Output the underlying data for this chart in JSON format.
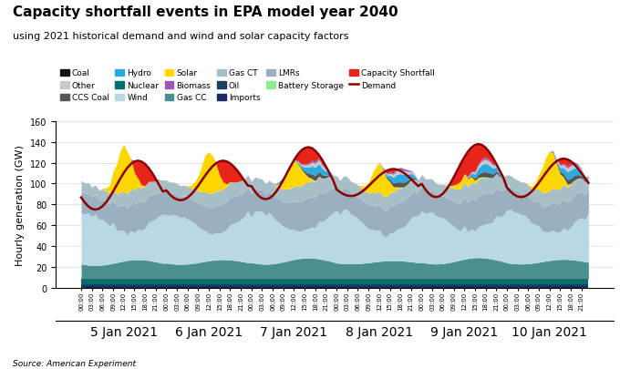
{
  "title": "Capacity shortfall events in EPA model year 2040",
  "subtitle": "using 2021 historical demand and wind and solar capacity factors",
  "ylabel": "Hourly generation (GW)",
  "source": "Source: American Experiment",
  "ylim": [
    0,
    160
  ],
  "yticks": [
    0,
    20,
    40,
    60,
    80,
    100,
    120,
    140,
    160
  ],
  "n_hours": 144,
  "days": [
    "5 Jan 2021",
    "6 Jan 2021",
    "7 Jan 2021",
    "8 Jan 2021",
    "9 Jan 2021",
    "10 Jan 2021"
  ],
  "colors": {
    "Coal": "#111111",
    "Other": "#c8c8c8",
    "CCS Coal": "#555555",
    "Hydro": "#29abe2",
    "Nuclear": "#007070",
    "Wind": "#b8d8e8",
    "Solar": "#ffd700",
    "Biomass": "#9b59b6",
    "Gas CC": "#4a9090",
    "Gas CT": "#a8bfc8",
    "Oil": "#1a4060",
    "Imports": "#1b2a6b",
    "LMRs": "#9ab0c0",
    "Battery Storage": "#90ee90",
    "Capacity Shortfall": "#e8251a",
    "Demand": "#8b0000"
  }
}
